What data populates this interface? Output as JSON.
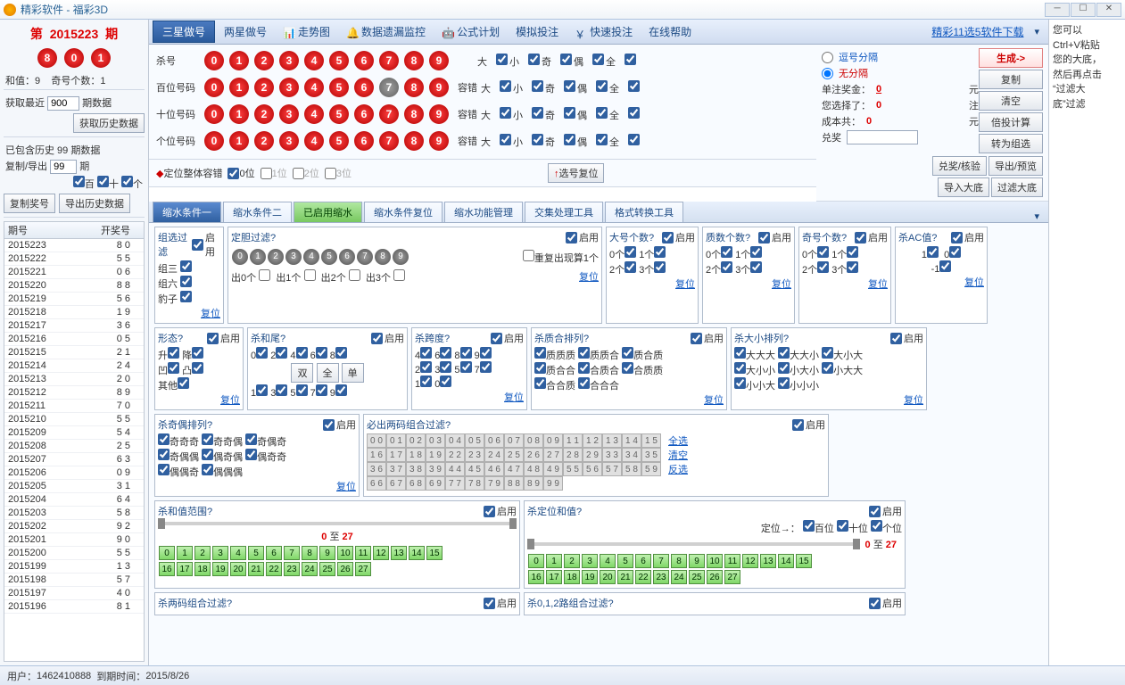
{
  "window": {
    "appTitle": "精彩软件 - 福彩3D"
  },
  "left": {
    "periodPrefix": "第",
    "period": "2015223",
    "periodSuffix": "期",
    "balls": [
      "8",
      "0",
      "1"
    ],
    "sumLabel": "和值：",
    "sumVal": "9",
    "oddLabel": "奇号个数：",
    "oddVal": "1",
    "fetchLabel": "获取最近",
    "fetchVal": "900",
    "fetchUnit": "期数据",
    "fetchBtn": "获取历史数据",
    "histLabel": "已包含历史 99 期数据",
    "copyLabel": "复制/导出",
    "copyVal": "99",
    "periodUnit": "期",
    "posBai": "百",
    "posShi": "十",
    "posGe": "个",
    "copyBtn": "复制奖号",
    "exportBtn": "导出历史数据",
    "col1": "期号",
    "col2": "开奖号",
    "rows": [
      [
        "2015223",
        "8 0"
      ],
      [
        "2015222",
        "5 5"
      ],
      [
        "2015221",
        "0 6"
      ],
      [
        "2015220",
        "8 8"
      ],
      [
        "2015219",
        "5 6"
      ],
      [
        "2015218",
        "1 9"
      ],
      [
        "2015217",
        "3 6"
      ],
      [
        "2015216",
        "0 5"
      ],
      [
        "2015215",
        "2 1"
      ],
      [
        "2015214",
        "2 4"
      ],
      [
        "2015213",
        "2 0"
      ],
      [
        "2015212",
        "8 9"
      ],
      [
        "2015211",
        "7 0"
      ],
      [
        "2015210",
        "5 5"
      ],
      [
        "2015209",
        "5 4"
      ],
      [
        "2015208",
        "2 5"
      ],
      [
        "2015207",
        "6 3"
      ],
      [
        "2015206",
        "0 9"
      ],
      [
        "2015205",
        "3 1"
      ],
      [
        "2015204",
        "6 4"
      ],
      [
        "2015203",
        "5 8"
      ],
      [
        "2015202",
        "9 2"
      ],
      [
        "2015201",
        "9 0"
      ],
      [
        "2015200",
        "5 5"
      ],
      [
        "2015199",
        "1 3"
      ],
      [
        "2015198",
        "5 7"
      ],
      [
        "2015197",
        "4 0"
      ],
      [
        "2015196",
        "8 1"
      ]
    ]
  },
  "toolbar": {
    "t1": "三星做号",
    "t2": "两星做号",
    "t3": "走势图",
    "t4": "数据遗漏监控",
    "t5": "公式计划",
    "t6": "模拟投注",
    "t7": "快速投注",
    "t8": "在线帮助",
    "link": "精彩11选5软件下载"
  },
  "numrows": {
    "kill": "杀号",
    "bai": "百位号码",
    "shi": "十位号码",
    "ge": "个位号码",
    "opts": [
      "大",
      "小",
      "奇",
      "偶",
      "全"
    ],
    "tolerLabel": "容错",
    "fixLabel": "定位整体容错",
    "pos0": "0位",
    "pos1": "1位",
    "pos2": "2位",
    "pos3": "3位",
    "resetBtn": "选号复位"
  },
  "side": {
    "sep1": "逗号分隔",
    "sep2": "无分隔",
    "bet": "单注奖金：",
    "betV": "0",
    "yuan": "元",
    "sel": "您选择了：",
    "selV": "0",
    "zhu": "注",
    "cost": "成本共：",
    "costV": "0",
    "prize": "兑奖",
    "genBtn": "生成->",
    "copyBtn": "复制",
    "clearBtn": "清空",
    "multBtn": "倍投计算",
    "grpBtn": "转为组选",
    "chkBtn": "兑奖/核验",
    "expBtn": "导出/预览",
    "impBtn": "导入大底",
    "fltBtn": "过滤大底"
  },
  "right": {
    "l1": "您可以",
    "l2": "Ctrl+V粘贴",
    "l3": "您的大底，",
    "l4": "然后再点击",
    "l5": "“过滤大",
    "l6": "底”过滤"
  },
  "subtabs": {
    "s1": "缩水条件一",
    "s2": "缩水条件二",
    "s3": "已启用缩水",
    "s4": "缩水条件复位",
    "s5": "缩水功能管理",
    "s6": "交集处理工具",
    "s7": "格式转换工具"
  },
  "panels": {
    "enable": "启用",
    "reset": "复位",
    "p1": "组选过滤",
    "p1a": "组三",
    "p1b": "组六",
    "p1c": "豹子",
    "p2": "定胆过滤?",
    "p2chk": "重复出现算1个",
    "p2o0": "出0个",
    "p2o1": "出1个",
    "p2o2": "出2个",
    "p2o3": "出3个",
    "p3": "大号个数?",
    "p4": "质数个数?",
    "p5": "奇号个数?",
    "p6": "杀AC值?",
    "cnt0": "0个",
    "cnt1": "1个",
    "cnt2": "2个",
    "cnt3": "3个",
    "v1": "1",
    "v0": "0",
    "vm1": "-1",
    "p7": "形态?",
    "p7a": "升",
    "p7b": "降",
    "p7c": "凹",
    "p7d": "凸",
    "p7e": "其他",
    "p8": "杀和尾?",
    "p8b1": "双",
    "p8b2": "全",
    "p8b3": "单",
    "p9": "杀跨度?",
    "p10": "杀质合排列?",
    "p10v": [
      "质质质",
      "质质合",
      "质合质",
      "质合合",
      "合质合",
      "合质质",
      "合合质",
      "合合合"
    ],
    "p11": "杀大小排列?",
    "p11v": [
      "大大大",
      "大大小",
      "大小大",
      "大小小",
      "小大小",
      "小大大",
      "小小大",
      "小小小"
    ],
    "p12": "杀奇偶排列?",
    "p12v": [
      "奇奇奇",
      "奇奇偶",
      "奇偶奇",
      "奇偶偶",
      "偶奇偶",
      "偶奇奇",
      "偶偶奇",
      "偶偶偶"
    ],
    "p13": "必出两码组合过滤?",
    "p13a": "全选",
    "p13b": "清空",
    "p13c": "反选",
    "p14": "杀和值范围?",
    "p14to": "至",
    "p14lo": "0",
    "p14hi": "27",
    "p15": "杀定位和值?",
    "p15loc": "定位→：",
    "p15b": "百位",
    "p15s": "十位",
    "p15g": "个位",
    "p16": "杀两码组合过滤?",
    "p17": "杀0,1,2路组合过滤?"
  },
  "status": {
    "user": "用户：",
    "userV": "1462410888",
    "exp": "到期时间：",
    "expV": "2015/8/26"
  }
}
